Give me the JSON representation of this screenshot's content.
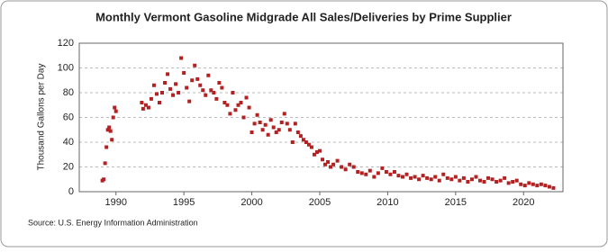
{
  "chart_data": {
    "type": "scatter",
    "title": "Monthly Vermont Gasoline Midgrade All Sales/Deliveries by Prime Supplier",
    "y_label": "Thousand Gallons per Day",
    "source": "Source: U.S. Energy Information Administration",
    "color": "#b22222",
    "grid": true,
    "xlim": [
      1987.3,
      2022.9
    ],
    "ylim": [
      0,
      120
    ],
    "xticks": [
      1990,
      1995,
      2000,
      2005,
      2010,
      2015,
      2020
    ],
    "yticks": [
      0,
      20,
      40,
      60,
      80,
      100,
      120
    ],
    "x": [
      1989.0,
      1989.1,
      1989.2,
      1989.3,
      1989.4,
      1989.5,
      1989.6,
      1989.7,
      1989.8,
      1989.9,
      1990.0,
      1991.9,
      1992.0,
      1992.2,
      1992.4,
      1992.6,
      1992.8,
      1993.0,
      1993.2,
      1993.4,
      1993.6,
      1993.8,
      1994.0,
      1994.2,
      1994.4,
      1994.6,
      1994.8,
      1995.0,
      1995.2,
      1995.4,
      1995.6,
      1995.8,
      1996.0,
      1996.2,
      1996.4,
      1996.6,
      1996.8,
      1997.0,
      1997.2,
      1997.4,
      1997.6,
      1997.8,
      1998.0,
      1998.2,
      1998.4,
      1998.6,
      1998.8,
      1999.0,
      1999.2,
      1999.4,
      1999.6,
      1999.8,
      2000.0,
      2000.2,
      2000.4,
      2000.6,
      2000.8,
      2001.0,
      2001.2,
      2001.4,
      2001.6,
      2001.8,
      2002.0,
      2002.2,
      2002.4,
      2002.6,
      2002.8,
      2003.0,
      2003.2,
      2003.4,
      2003.6,
      2003.8,
      2004.0,
      2004.2,
      2004.4,
      2004.6,
      2004.8,
      2005.0,
      2005.2,
      2005.4,
      2005.6,
      2005.8,
      2006.0,
      2006.3,
      2006.6,
      2006.9,
      2007.2,
      2007.5,
      2007.8,
      2008.1,
      2008.4,
      2008.7,
      2009.0,
      2009.3,
      2009.6,
      2009.9,
      2010.2,
      2010.5,
      2010.8,
      2011.1,
      2011.4,
      2011.7,
      2012.0,
      2012.3,
      2012.6,
      2012.9,
      2013.2,
      2013.5,
      2013.8,
      2014.1,
      2014.4,
      2014.7,
      2015.0,
      2015.3,
      2015.6,
      2015.9,
      2016.2,
      2016.5,
      2016.8,
      2017.1,
      2017.4,
      2017.7,
      2018.0,
      2018.3,
      2018.6,
      2018.9,
      2019.2,
      2019.5,
      2019.8,
      2020.1,
      2020.4,
      2020.7,
      2021.0,
      2021.3,
      2021.6,
      2021.9,
      2022.2
    ],
    "values": [
      9,
      10,
      23,
      36,
      50,
      52,
      49,
      42,
      60,
      68,
      65,
      72,
      67,
      70,
      68,
      75,
      86,
      79,
      72,
      80,
      88,
      95,
      83,
      78,
      87,
      80,
      108,
      96,
      84,
      73,
      90,
      102,
      91,
      86,
      82,
      78,
      94,
      82,
      80,
      75,
      88,
      84,
      72,
      70,
      63,
      80,
      66,
      70,
      72,
      60,
      76,
      68,
      48,
      55,
      62,
      56,
      50,
      54,
      46,
      58,
      52,
      48,
      50,
      56,
      63,
      55,
      50,
      40,
      55,
      48,
      45,
      42,
      40,
      38,
      36,
      30,
      32,
      33,
      26,
      22,
      24,
      20,
      22,
      25,
      20,
      18,
      22,
      20,
      16,
      15,
      14,
      17,
      12,
      15,
      19,
      16,
      14,
      16,
      13,
      12,
      14,
      11,
      12,
      10,
      13,
      11,
      10,
      12,
      9,
      14,
      11,
      10,
      12,
      9,
      11,
      8,
      10,
      12,
      9,
      8,
      11,
      10,
      8,
      9,
      11,
      7,
      8,
      9,
      6,
      5,
      7,
      6,
      5,
      6,
      5,
      4,
      3
    ]
  }
}
